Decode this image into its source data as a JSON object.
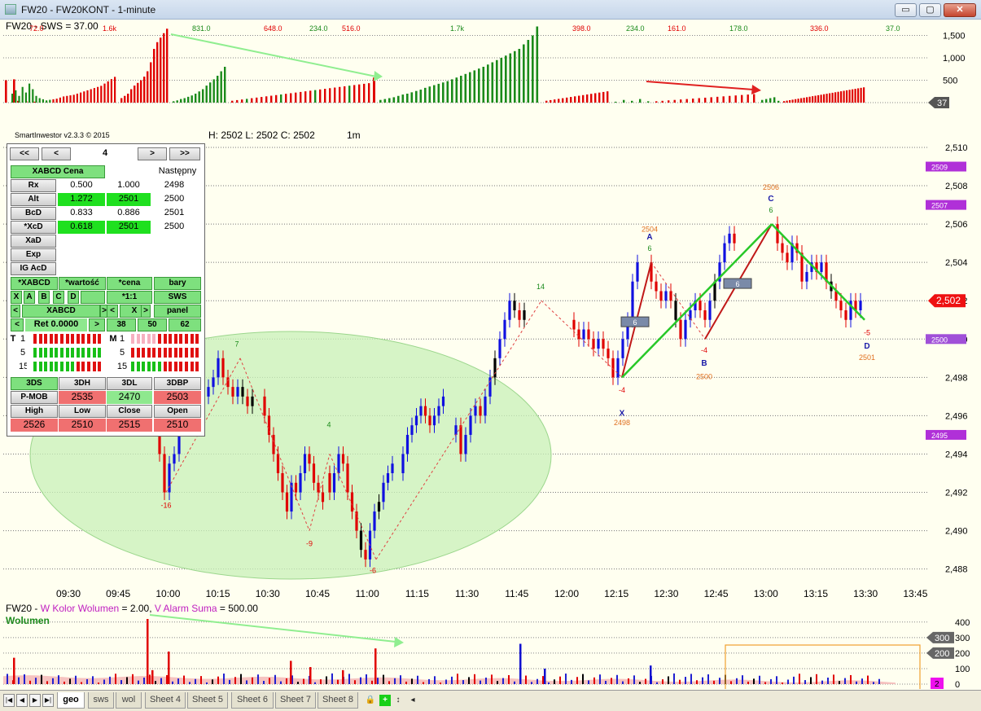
{
  "window": {
    "title": "FW20 - FW20KONT - 1-minute",
    "buttons": {
      "minimize": "▭",
      "maximize": "▢",
      "close": "✕"
    }
  },
  "tabs": {
    "items": [
      "geo",
      "sws",
      "wol",
      "Sheet 4",
      "Sheet 5",
      "Sheet 6",
      "Sheet 7",
      "Sheet 8"
    ],
    "active": "geo"
  },
  "colors": {
    "up": "#1a8a1a",
    "down": "#e00000",
    "bg": "#fffff0",
    "ellipse": "#c8f0b8",
    "zigzag": "#28c828",
    "wick_blue": "#1010e0"
  },
  "panel": {
    "version": "SmartInwestor v2.3.3 © 2015",
    "nav": [
      "<<",
      "<",
      "4",
      ">",
      ">>"
    ],
    "header": {
      "cena": "XABCD Cena",
      "nastepny": "Następny"
    },
    "rows": [
      {
        "label": "Rx",
        "v1": "0.500",
        "v2": "1.000",
        "next": "2498"
      },
      {
        "label": "Alt",
        "v1": "1.272",
        "v2": "2501",
        "next": "2500"
      },
      {
        "label": "BcD",
        "v1": "0.833",
        "v2": "0.886",
        "next": "2501"
      },
      {
        "label": "*XcD",
        "v1": "0.618",
        "v2": "2501",
        "next": "2500"
      },
      {
        "label": "XaD"
      },
      {
        "label": "Exp"
      },
      {
        "label": "IG AcD"
      }
    ],
    "opts1": [
      "*XABCD",
      "*wartość",
      "*cena",
      "bary"
    ],
    "opts2": [
      "X",
      "A",
      "B",
      "C",
      "D",
      "*1:1",
      "SWS"
    ],
    "opts3": [
      "<",
      "XABCD",
      ">",
      "<",
      "X",
      ">",
      "panel"
    ],
    "ret": {
      "prev": "<",
      "label": "Ret 0.0000",
      "next": ">",
      "a": "38",
      "b": "50",
      "c": "62"
    },
    "trend": {
      "t": "T",
      "m": "M",
      "rows": [
        "1",
        "5",
        "15"
      ]
    },
    "ds_head": [
      "3DS",
      "3DH",
      "3DL",
      "3DBP"
    ],
    "pmob": {
      "label": "P-MOB",
      "h": "2535",
      "l": "2470",
      "bp": "2503"
    },
    "hloc_head": [
      "High",
      "Low",
      "Close",
      "Open"
    ],
    "hloc": [
      "2526",
      "2510",
      "2515",
      "2510"
    ]
  },
  "chart_data": [
    {
      "type": "bar",
      "title": "FW20 - SWS = 37.00",
      "y_ticks": [
        "1,500",
        "1,000",
        "500",
        "0"
      ],
      "ylim": [
        0,
        1600
      ],
      "current_value_label": "37",
      "annotations": [
        "72.0",
        "1.6k",
        "831.0",
        "648.0",
        "516.0",
        "234.0",
        "1.7k",
        "398.0",
        "234.0",
        "161.0",
        "178.0",
        "336.0",
        "37.0"
      ],
      "series": [
        {
          "name": "up",
          "values": [
            0,
            0,
            0,
            0,
            0,
            0,
            0,
            0,
            0,
            0,
            60,
            140,
            200,
            300,
            380,
            430,
            460,
            480,
            500,
            540,
            580,
            620,
            660,
            700,
            740,
            780,
            820,
            860,
            900,
            940,
            980,
            1020,
            1060,
            1100,
            1150,
            1200,
            1300,
            1400,
            1550,
            1700,
            0,
            0,
            0,
            0,
            0,
            0,
            0,
            0,
            0,
            0,
            0,
            0,
            0,
            0,
            0,
            0,
            0,
            0,
            0,
            0,
            40,
            60,
            70,
            80,
            90,
            110,
            120,
            130,
            150,
            170
          ]
        },
        {
          "name": "down",
          "values": [
            500,
            0,
            520,
            40,
            0,
            30,
            0,
            20,
            0,
            0,
            0,
            0,
            0,
            0,
            0,
            0,
            0,
            0,
            0,
            0,
            0,
            0,
            0,
            0,
            0,
            0,
            0,
            0,
            0,
            0,
            0,
            0,
            0,
            0,
            0,
            0,
            0,
            0,
            0,
            0,
            40,
            60,
            80,
            90,
            110,
            130,
            150,
            170,
            190,
            200,
            210,
            220,
            230,
            240,
            250,
            260,
            270,
            280,
            290,
            300,
            0,
            0,
            0,
            0,
            0,
            0,
            0,
            0,
            0,
            0
          ]
        }
      ]
    },
    {
      "type": "candlestick",
      "info": {
        "h": "2502",
        "l": "2502",
        "c": "2502",
        "interval": "1m"
      },
      "ylim": [
        2487,
        2511
      ],
      "y_ticks": [
        "2,510",
        "2,508",
        "2,506",
        "2,504",
        "2,502",
        "2,500",
        "2,498",
        "2,496",
        "2,494",
        "2,492",
        "2,490",
        "2,488"
      ],
      "x_ticks": [
        "09:30",
        "09:45",
        "10:00",
        "10:15",
        "10:30",
        "10:45",
        "11:00",
        "11:15",
        "11:30",
        "11:45",
        "12:00",
        "12:15",
        "12:30",
        "12:45",
        "13:00",
        "13:15",
        "13:30",
        "13:45"
      ],
      "price_tags": [
        {
          "label": "2509",
          "value": 2509
        },
        {
          "label": "2507",
          "value": 2507
        },
        {
          "label": "2,502",
          "value": 2502
        },
        {
          "label": "2500",
          "value": 2500
        },
        {
          "label": "2495",
          "value": 2495
        }
      ],
      "pattern": [
        {
          "letter": "X",
          "value": "-4",
          "price": "2498"
        },
        {
          "letter": "A",
          "value": "6",
          "price": "2504"
        },
        {
          "letter": "B",
          "value": "-4",
          "price": "2500"
        },
        {
          "letter": "C",
          "value": "6",
          "price": "2506"
        },
        {
          "letter": "D",
          "value": "-5",
          "price": "2501"
        }
      ],
      "swing_labels": [
        "7",
        "-16",
        "4",
        "-9",
        "-6",
        "14"
      ],
      "boxes": [
        "6",
        "6"
      ]
    },
    {
      "type": "bar",
      "title_parts": [
        "FW20",
        " - ",
        "W Kolor Wolumen",
        " = 2.00, ",
        "V Alarm Suma",
        " = 500.00"
      ],
      "series_label": "Wolumen",
      "y_ticks": [
        "400",
        "300",
        "200",
        "100",
        "0"
      ],
      "ylim": [
        0,
        420
      ],
      "current_value_labels": [
        "300",
        "200",
        "2"
      ]
    }
  ]
}
